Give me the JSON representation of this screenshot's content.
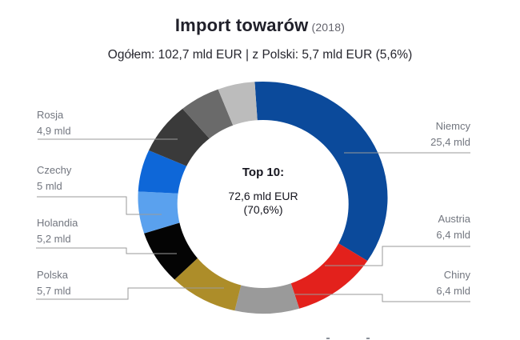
{
  "title": {
    "text": "Import towarów",
    "year": "(2018)"
  },
  "subtitle": "Ogółem: 102,7 mld EUR | z Polski: 5,7 mld EUR (5,6%)",
  "center_label": {
    "heading": "Top 10:",
    "value": "72,6 mld EUR",
    "percent": "(70,6%)"
  },
  "chart_data": {
    "type": "pie",
    "variant": "donut",
    "title": "Import towarów (2018)",
    "unit": "mld EUR",
    "total_text": "Ogółem: 102,7 mld EUR",
    "from_poland_text": "z Polski: 5,7 mld EUR (5,6%)",
    "top10_text": "Top 10: 72,6 mld EUR (70,6%)",
    "legend_position": "callout labels around donut",
    "grid": false,
    "segments": [
      {
        "label": "Niemcy",
        "value": 25.4,
        "value_text": "25,4 mld",
        "color": "#0b4a9b",
        "start_deg": -3.7,
        "end_deg": 123
      },
      {
        "label": "Austria",
        "value": 6.4,
        "value_text": "6,4 mld",
        "color": "#e3211c",
        "start_deg": 123,
        "end_deg": 163
      },
      {
        "label": "Chiny",
        "value": 6.4,
        "value_text": "6,4 mld",
        "color": "#9a9a9a",
        "start_deg": 163,
        "end_deg": 193
      },
      {
        "label": "Polska",
        "value": 5.7,
        "value_text": "5,7 mld",
        "color": "#ad8d29",
        "start_deg": 193,
        "end_deg": 225
      },
      {
        "label": "Holandia",
        "value": 5.2,
        "value_text": "5,2 mld",
        "color": "#040404",
        "start_deg": 225,
        "end_deg": 252
      },
      {
        "label": "Czechy",
        "value": 5.0,
        "value_text": "5 mld",
        "color": "#5aa1ee",
        "start_deg": 252,
        "end_deg": 273
      },
      {
        "label": null,
        "value": null,
        "value_text": null,
        "color": "#0e67d8",
        "start_deg": 273,
        "end_deg": 294
      },
      {
        "label": "Rosja",
        "value": 4.9,
        "value_text": "4,9 mld",
        "color": "#3a3a3a",
        "start_deg": 294,
        "end_deg": 320
      },
      {
        "label": null,
        "value": null,
        "value_text": null,
        "color": "#6a6a6a",
        "start_deg": 320,
        "end_deg": 339
      },
      {
        "label": null,
        "value": null,
        "value_text": null,
        "color": "#bcbcbc",
        "start_deg": 339,
        "end_deg": 356.3
      }
    ],
    "callout_line_color": "#9a9a9a"
  }
}
